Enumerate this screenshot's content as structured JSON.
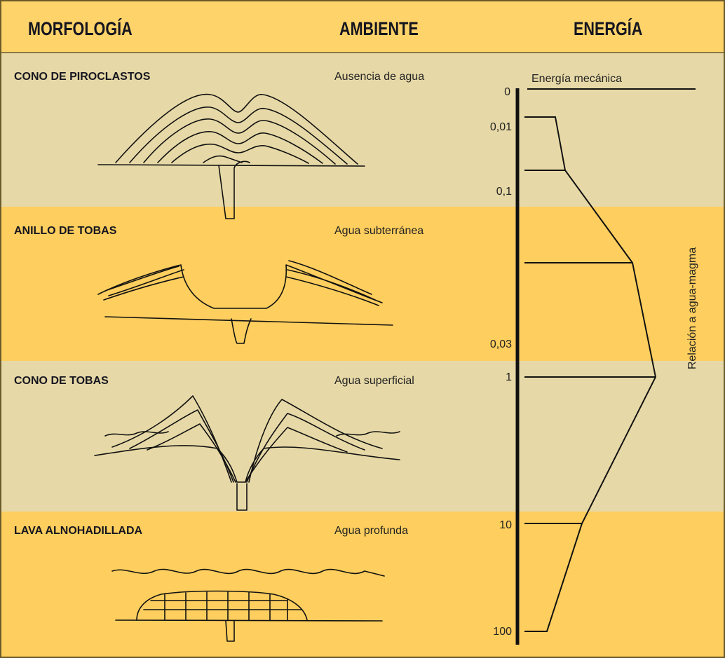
{
  "header": {
    "columns": [
      "MORFOLOGÍA",
      "AMBIENTE",
      "ENERGÍA"
    ]
  },
  "rows": [
    {
      "morphology": "CONO DE PIROCLASTOS",
      "environment": "Ausencia de agua"
    },
    {
      "morphology": "ANILLO DE TOBAS",
      "environment": "Agua subterránea"
    },
    {
      "morphology": "CONO DE TOBAS",
      "environment": "Agua superficial"
    },
    {
      "morphology": "LAVA ALNOHADILLADA",
      "environment": "Agua profunda"
    }
  ],
  "energy": {
    "top_label": "Energía mecánica",
    "axis_label": "Relación a agua-magma",
    "scale_labels": [
      "0",
      "0,01",
      "0,1",
      "0,03",
      "1",
      "10",
      "100"
    ]
  }
}
